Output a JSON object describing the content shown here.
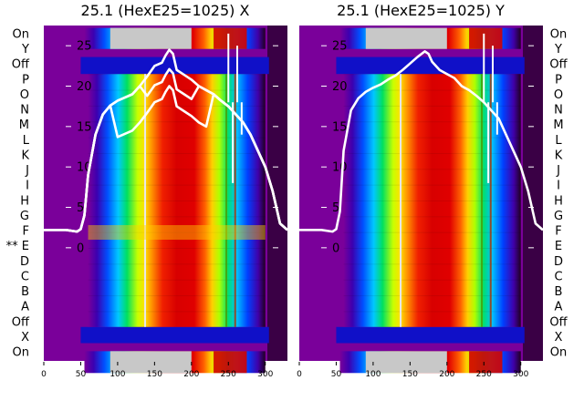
{
  "chart_data": [
    {
      "type": "heatmap",
      "title": "25.1 (HexE25=1025) X",
      "xlim": [
        0,
        330
      ],
      "ylim": [
        -14,
        27.5
      ],
      "x_ticks": [
        0,
        50,
        100,
        150,
        200,
        250,
        300
      ],
      "y_ticks": [
        0,
        5,
        10,
        15,
        20,
        25
      ],
      "row_labels": [
        "On",
        "X",
        "Off",
        "A",
        "B",
        "C",
        "D",
        "** E",
        "F",
        "G",
        "H",
        "I",
        "J",
        "K",
        "L",
        "M",
        "N",
        "O",
        "P",
        "Off",
        "Y",
        "On"
      ],
      "profile_x": [
        0,
        30,
        45,
        50,
        55,
        60,
        70,
        80,
        90,
        100,
        110,
        120,
        130,
        140,
        150,
        160,
        165,
        170,
        175,
        180,
        190,
        200,
        210,
        220,
        230,
        240,
        250,
        260,
        270,
        280,
        290,
        300,
        310,
        320,
        330
      ],
      "profile_y": [
        2.2,
        2.2,
        2.0,
        2.3,
        4.0,
        9.0,
        14.0,
        16.5,
        17.6,
        18.2,
        18.6,
        19.0,
        20.0,
        21.2,
        22.5,
        22.9,
        23.8,
        24.5,
        24.0,
        22.0,
        21.4,
        20.8,
        20.0,
        19.5,
        19.0,
        18.2,
        17.5,
        16.5,
        15.5,
        14.0,
        12.0,
        10.0,
        7.0,
        3.0,
        2.2
      ]
    },
    {
      "type": "heatmap",
      "title": "25.1 (HexE25=1025) Y",
      "xlim": [
        0,
        330
      ],
      "ylim": [
        -14,
        27.5
      ],
      "x_ticks": [
        0,
        50,
        100,
        150,
        200,
        250,
        300
      ],
      "y_ticks": [
        0,
        5,
        10,
        15,
        20,
        25
      ],
      "row_labels": [
        "On",
        "X",
        "Off",
        "A",
        "B",
        "C",
        "D",
        "E",
        "F",
        "G",
        "H",
        "I",
        "J",
        "K",
        "L",
        "M",
        "N",
        "O",
        "P",
        "Off",
        "Y",
        "On"
      ],
      "profile_x": [
        0,
        30,
        45,
        50,
        55,
        60,
        70,
        80,
        90,
        100,
        110,
        120,
        130,
        140,
        150,
        160,
        170,
        175,
        180,
        190,
        200,
        210,
        220,
        230,
        240,
        250,
        260,
        270,
        280,
        290,
        300,
        310,
        320,
        330
      ],
      "profile_y": [
        2.2,
        2.2,
        2.0,
        2.3,
        4.5,
        12.0,
        17.0,
        18.5,
        19.3,
        19.8,
        20.2,
        20.8,
        21.3,
        22.0,
        22.8,
        23.6,
        24.3,
        24.0,
        23.0,
        22.0,
        21.5,
        21.0,
        20.0,
        19.5,
        18.8,
        18.0,
        17.0,
        16.0,
        14.0,
        12.0,
        10.0,
        7.0,
        3.0,
        2.2
      ]
    }
  ]
}
